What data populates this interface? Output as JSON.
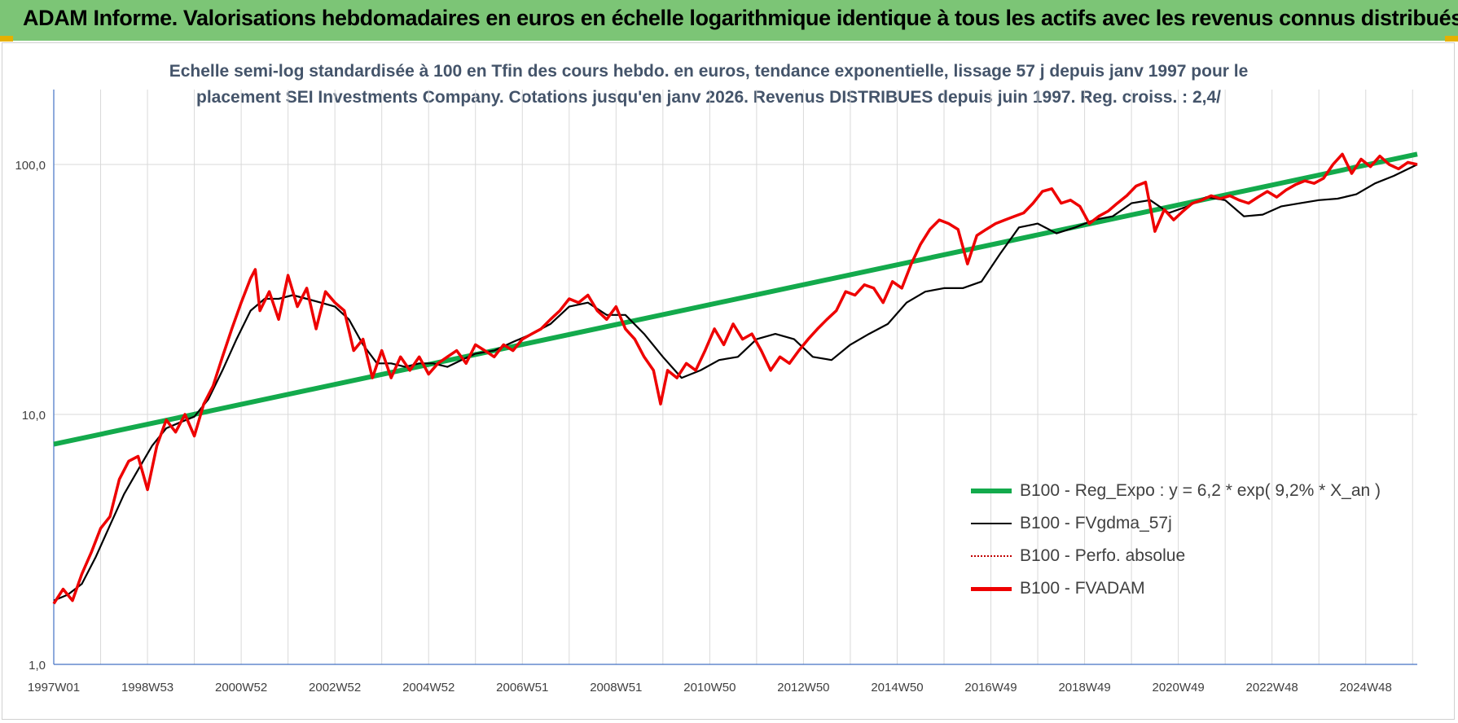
{
  "header": {
    "title": "ADAM Informe. Valorisations hebdomadaires en euros en échelle logarithmique identique à tous les actifs avec les revenus connus distribués"
  },
  "subtitle": {
    "line1": "Echelle semi-log standardisée à 100 en Tfin des cours hebdo. en euros, tendance exponentielle, lissage 57 j depuis janv 1997 pour le",
    "line2": "placement SEI Investments Company. Cotations jusqu'en janv 2026.  Revenus DISTRIBUES depuis juin 1997.  Reg. croiss. : 2,4/"
  },
  "legend": {
    "items": [
      {
        "label": "B100 - Reg_Expo : y = 6,2 * exp( 9,2% *  X_an )"
      },
      {
        "label": "B100 - FVgdma_57j"
      },
      {
        "label": "B100 - Perfo. absolue"
      },
      {
        "label": "B100 - FVADAM"
      }
    ]
  },
  "colors": {
    "banner": "#7cc576",
    "regression": "#13aa4c",
    "fvgdma": "#000000",
    "perfo": "#c00000",
    "fvadam": "#ee0000",
    "grid": "#d9d9d9",
    "axis": "#4472c4"
  },
  "chart_data": {
    "type": "line",
    "y_scale": "log",
    "ylim": [
      1,
      180
    ],
    "y_ticks": [
      1,
      10,
      100
    ],
    "y_tick_labels": [
      "1,0",
      "10,0",
      "100,0"
    ],
    "grid": true,
    "legend_position": "bottom-right",
    "x_tick_labels": [
      "1997W01",
      "1998W53",
      "2000W52",
      "2002W52",
      "2004W52",
      "2006W51",
      "2008W51",
      "2010W50",
      "2012W50",
      "2014W50",
      "2016W49",
      "2018W49",
      "2020W49",
      "2022W48",
      "2024W48"
    ],
    "x_range_years": [
      1997.0,
      2026.1
    ],
    "series": [
      {
        "name": "B100 - Reg_Expo : y = 6,2 * exp( 9,2% *  X_an )",
        "style": "regression",
        "points": [
          [
            1997.0,
            7.6
          ],
          [
            2026.1,
            110
          ]
        ]
      },
      {
        "name": "B100 - FVgdma_57j",
        "style": "smooth",
        "points": [
          [
            1997.0,
            1.8
          ],
          [
            1997.3,
            1.9
          ],
          [
            1997.6,
            2.1
          ],
          [
            1997.9,
            2.7
          ],
          [
            1998.2,
            3.6
          ],
          [
            1998.5,
            4.8
          ],
          [
            1998.8,
            6.0
          ],
          [
            1999.1,
            7.5
          ],
          [
            1999.4,
            8.8
          ],
          [
            1999.7,
            9.3
          ],
          [
            2000.0,
            9.8
          ],
          [
            2000.3,
            11.5
          ],
          [
            2000.6,
            15
          ],
          [
            2000.9,
            20
          ],
          [
            2001.2,
            26
          ],
          [
            2001.5,
            29
          ],
          [
            2001.8,
            29
          ],
          [
            2002.1,
            30
          ],
          [
            2002.4,
            29
          ],
          [
            2002.7,
            28
          ],
          [
            2003.0,
            27
          ],
          [
            2003.3,
            24
          ],
          [
            2003.6,
            19
          ],
          [
            2003.9,
            16
          ],
          [
            2004.2,
            16
          ],
          [
            2004.5,
            15.5
          ],
          [
            2004.8,
            16
          ],
          [
            2005.1,
            16
          ],
          [
            2005.4,
            15.5
          ],
          [
            2005.7,
            16.5
          ],
          [
            2006.0,
            17.5
          ],
          [
            2006.4,
            18
          ],
          [
            2006.8,
            19.5
          ],
          [
            2007.2,
            21
          ],
          [
            2007.6,
            23
          ],
          [
            2008.0,
            27
          ],
          [
            2008.4,
            28
          ],
          [
            2008.8,
            25
          ],
          [
            2009.2,
            25
          ],
          [
            2009.6,
            21
          ],
          [
            2010.0,
            17
          ],
          [
            2010.4,
            14
          ],
          [
            2010.8,
            15
          ],
          [
            2011.2,
            16.5
          ],
          [
            2011.6,
            17
          ],
          [
            2012.0,
            20
          ],
          [
            2012.4,
            21
          ],
          [
            2012.8,
            20
          ],
          [
            2013.2,
            17
          ],
          [
            2013.6,
            16.5
          ],
          [
            2014.0,
            19
          ],
          [
            2014.4,
            21
          ],
          [
            2014.8,
            23
          ],
          [
            2015.2,
            28
          ],
          [
            2015.6,
            31
          ],
          [
            2016.0,
            32
          ],
          [
            2016.4,
            32
          ],
          [
            2016.8,
            34
          ],
          [
            2017.2,
            44
          ],
          [
            2017.6,
            56
          ],
          [
            2018.0,
            58
          ],
          [
            2018.4,
            53
          ],
          [
            2018.8,
            56
          ],
          [
            2019.2,
            60
          ],
          [
            2019.6,
            62
          ],
          [
            2020.0,
            70
          ],
          [
            2020.4,
            72
          ],
          [
            2020.8,
            64
          ],
          [
            2021.2,
            68
          ],
          [
            2021.6,
            74
          ],
          [
            2022.0,
            72
          ],
          [
            2022.4,
            62
          ],
          [
            2022.8,
            63
          ],
          [
            2023.2,
            68
          ],
          [
            2023.6,
            70
          ],
          [
            2024.0,
            72
          ],
          [
            2024.4,
            73
          ],
          [
            2024.8,
            76
          ],
          [
            2025.2,
            84
          ],
          [
            2025.6,
            90
          ],
          [
            2026.1,
            100
          ]
        ]
      },
      {
        "name": "B100 - Perfo. absolue",
        "style": "dotted",
        "points": []
      },
      {
        "name": "B100 - FVADAM",
        "style": "main",
        "points": [
          [
            1997.0,
            1.75
          ],
          [
            1997.2,
            2.0
          ],
          [
            1997.4,
            1.8
          ],
          [
            1997.6,
            2.3
          ],
          [
            1997.8,
            2.8
          ],
          [
            1998.0,
            3.5
          ],
          [
            1998.2,
            3.9
          ],
          [
            1998.4,
            5.5
          ],
          [
            1998.6,
            6.5
          ],
          [
            1998.8,
            6.8
          ],
          [
            1999.0,
            5.0
          ],
          [
            1999.2,
            7.5
          ],
          [
            1999.4,
            9.5
          ],
          [
            1999.6,
            8.5
          ],
          [
            1999.8,
            10
          ],
          [
            2000.0,
            8.2
          ],
          [
            2000.2,
            11
          ],
          [
            2000.4,
            13
          ],
          [
            2000.6,
            17
          ],
          [
            2000.8,
            22
          ],
          [
            2001.0,
            28
          ],
          [
            2001.2,
            35
          ],
          [
            2001.3,
            38
          ],
          [
            2001.4,
            26
          ],
          [
            2001.6,
            31
          ],
          [
            2001.8,
            24
          ],
          [
            2002.0,
            36
          ],
          [
            2002.2,
            27
          ],
          [
            2002.4,
            32
          ],
          [
            2002.6,
            22
          ],
          [
            2002.8,
            31
          ],
          [
            2003.0,
            28
          ],
          [
            2003.2,
            26
          ],
          [
            2003.4,
            18
          ],
          [
            2003.6,
            20
          ],
          [
            2003.8,
            14
          ],
          [
            2004.0,
            18
          ],
          [
            2004.2,
            14
          ],
          [
            2004.4,
            17
          ],
          [
            2004.6,
            15
          ],
          [
            2004.8,
            17
          ],
          [
            2005.0,
            14.5
          ],
          [
            2005.2,
            16
          ],
          [
            2005.4,
            17
          ],
          [
            2005.6,
            18
          ],
          [
            2005.8,
            16
          ],
          [
            2006.0,
            19
          ],
          [
            2006.2,
            18
          ],
          [
            2006.4,
            17
          ],
          [
            2006.6,
            19
          ],
          [
            2006.8,
            18
          ],
          [
            2007.0,
            20
          ],
          [
            2007.2,
            21
          ],
          [
            2007.4,
            22
          ],
          [
            2007.6,
            24
          ],
          [
            2007.8,
            26
          ],
          [
            2008.0,
            29
          ],
          [
            2008.2,
            28
          ],
          [
            2008.4,
            30
          ],
          [
            2008.6,
            26
          ],
          [
            2008.8,
            24
          ],
          [
            2009.0,
            27
          ],
          [
            2009.2,
            22
          ],
          [
            2009.4,
            20
          ],
          [
            2009.6,
            17
          ],
          [
            2009.8,
            15
          ],
          [
            2009.95,
            11
          ],
          [
            2010.1,
            15
          ],
          [
            2010.3,
            14
          ],
          [
            2010.5,
            16
          ],
          [
            2010.7,
            15
          ],
          [
            2010.9,
            18
          ],
          [
            2011.1,
            22
          ],
          [
            2011.3,
            19
          ],
          [
            2011.5,
            23
          ],
          [
            2011.7,
            20
          ],
          [
            2011.9,
            21
          ],
          [
            2012.1,
            18
          ],
          [
            2012.3,
            15
          ],
          [
            2012.5,
            17
          ],
          [
            2012.7,
            16
          ],
          [
            2012.9,
            18
          ],
          [
            2013.1,
            20
          ],
          [
            2013.3,
            22
          ],
          [
            2013.5,
            24
          ],
          [
            2013.7,
            26
          ],
          [
            2013.9,
            31
          ],
          [
            2014.1,
            30
          ],
          [
            2014.3,
            33
          ],
          [
            2014.5,
            32
          ],
          [
            2014.7,
            28
          ],
          [
            2014.9,
            34
          ],
          [
            2015.1,
            32
          ],
          [
            2015.3,
            40
          ],
          [
            2015.5,
            48
          ],
          [
            2015.7,
            55
          ],
          [
            2015.9,
            60
          ],
          [
            2016.1,
            58
          ],
          [
            2016.3,
            55
          ],
          [
            2016.5,
            40
          ],
          [
            2016.7,
            52
          ],
          [
            2016.9,
            55
          ],
          [
            2017.1,
            58
          ],
          [
            2017.3,
            60
          ],
          [
            2017.5,
            62
          ],
          [
            2017.7,
            64
          ],
          [
            2017.9,
            70
          ],
          [
            2018.1,
            78
          ],
          [
            2018.3,
            80
          ],
          [
            2018.5,
            70
          ],
          [
            2018.7,
            72
          ],
          [
            2018.9,
            68
          ],
          [
            2019.1,
            58
          ],
          [
            2019.3,
            62
          ],
          [
            2019.5,
            65
          ],
          [
            2019.7,
            70
          ],
          [
            2019.9,
            75
          ],
          [
            2020.1,
            82
          ],
          [
            2020.3,
            85
          ],
          [
            2020.5,
            54
          ],
          [
            2020.7,
            66
          ],
          [
            2020.9,
            60
          ],
          [
            2021.1,
            65
          ],
          [
            2021.3,
            70
          ],
          [
            2021.5,
            72
          ],
          [
            2021.7,
            75
          ],
          [
            2021.9,
            73
          ],
          [
            2022.1,
            75
          ],
          [
            2022.3,
            72
          ],
          [
            2022.5,
            70
          ],
          [
            2022.7,
            74
          ],
          [
            2022.9,
            78
          ],
          [
            2023.1,
            74
          ],
          [
            2023.3,
            79
          ],
          [
            2023.5,
            83
          ],
          [
            2023.7,
            86
          ],
          [
            2023.9,
            84
          ],
          [
            2024.1,
            88
          ],
          [
            2024.3,
            100
          ],
          [
            2024.5,
            110
          ],
          [
            2024.7,
            92
          ],
          [
            2024.9,
            105
          ],
          [
            2025.1,
            98
          ],
          [
            2025.3,
            108
          ],
          [
            2025.5,
            100
          ],
          [
            2025.7,
            96
          ],
          [
            2025.9,
            102
          ],
          [
            2026.1,
            100
          ]
        ]
      }
    ]
  }
}
